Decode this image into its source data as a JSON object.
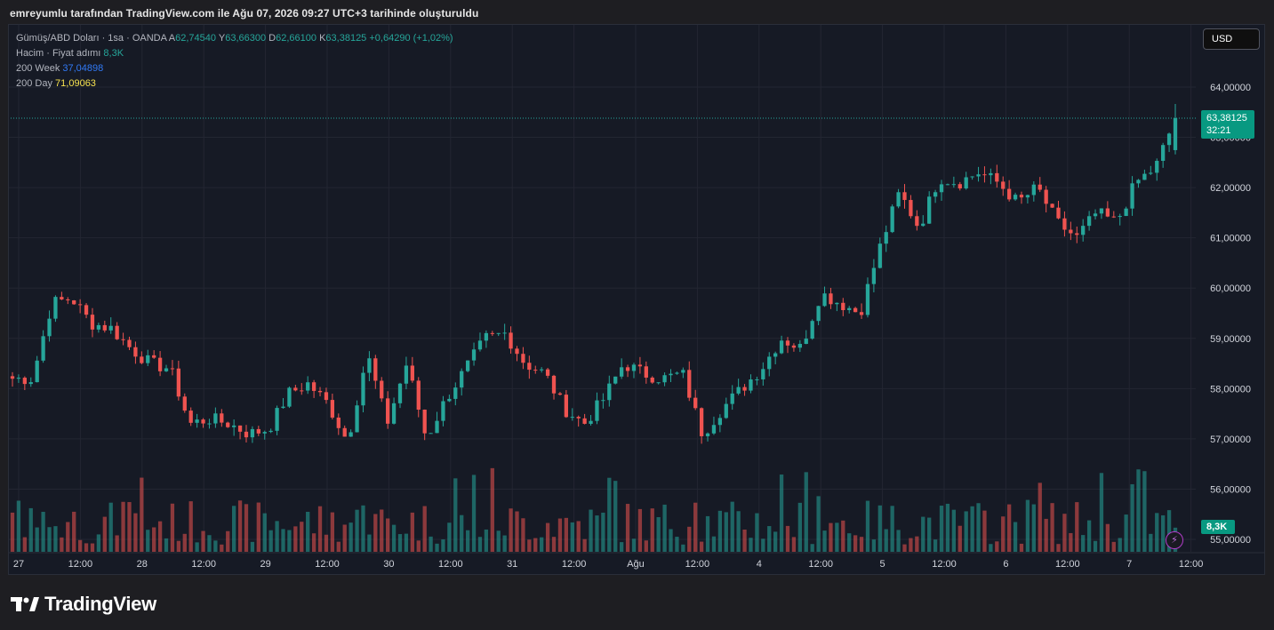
{
  "attribution": "emreyumlu tarafından TradingView.com ile Ağu 07, 2026 09:27 UTC+3 tarihinde oluşturuldu",
  "legend": {
    "symbol": "Gümüş/ABD Doları · 1sa · OANDA",
    "open_label": "A",
    "open": "62,74540",
    "high_label": "Y",
    "high": "63,66300",
    "low_label": "D",
    "low": "62,66100",
    "close_label": "K",
    "close": "63,38125",
    "change": "+0,64290 (+1,02%)",
    "volume_label": "Hacim · Fiyat adımı",
    "volume_value": "8,3K",
    "ma_week_label": "200 Week",
    "ma_week_value": "37,04898",
    "ma_day_label": "200 Day",
    "ma_day_value": "71,09063"
  },
  "currency": "USD",
  "price_tag": {
    "price": "63,38125",
    "countdown": "32:21"
  },
  "volume_tag": "8,3K",
  "brand": "TradingView",
  "colors": {
    "up": "#26a69a",
    "down": "#ef5350",
    "up_tag": "#089981",
    "grid": "#232632",
    "background": "#161a25",
    "ma_week": "#3179f5",
    "ma_day": "#f7e24f"
  },
  "icons": {
    "logo": "tradingview-logo-icon",
    "bolt": "lightning-bolt-icon"
  },
  "chart_data": {
    "type": "candlestick",
    "symbol": "Gümüş/ABD Doları",
    "interval": "1sa",
    "ylim": [
      55.0,
      64.6
    ],
    "y_ticks": [
      "64,00000",
      "63,00000",
      "62,00000",
      "61,00000",
      "60,00000",
      "59,00000",
      "58,00000",
      "57,00000",
      "56,00000",
      "55,00000"
    ],
    "y_tick_values": [
      64,
      63,
      62,
      61,
      60,
      59,
      58,
      57,
      56,
      55
    ],
    "x_ticks": [
      "27",
      "12:00",
      "28",
      "12:00",
      "29",
      "12:00",
      "30",
      "12:00",
      "31",
      "12:00",
      "Ağu",
      "12:00",
      "4",
      "12:00",
      "5",
      "12:00",
      "6",
      "12:00",
      "7",
      "12:00"
    ],
    "close_anchors": [
      58.2,
      58.2,
      59.7,
      59.8,
      59.3,
      59.2,
      58.8,
      58.5,
      58.4,
      57.3,
      57.4,
      57.3,
      57.1,
      57.2,
      57.9,
      58.1,
      57.7,
      56.95,
      58.7,
      57.3,
      58.5,
      57.0,
      57.8,
      58.4,
      59.0,
      59.1,
      58.5,
      58.3,
      57.6,
      57.3,
      57.8,
      58.5,
      58.3,
      58.2,
      58.3,
      57.1,
      57.6,
      58.0,
      58.4,
      59.0,
      58.8,
      59.9,
      59.7,
      59.5,
      60.8,
      61.9,
      61.2,
      62.2,
      62.1,
      62.3,
      62.1,
      61.7,
      62.0,
      61.3,
      61.0,
      61.5,
      61.3,
      62.1,
      62.4,
      63.38
    ],
    "last": {
      "open": 62.7454,
      "high": 63.663,
      "low": 62.661,
      "close": 63.38125,
      "change": 0.6429,
      "change_pct": 1.02
    },
    "volume_last": "8,3K"
  }
}
